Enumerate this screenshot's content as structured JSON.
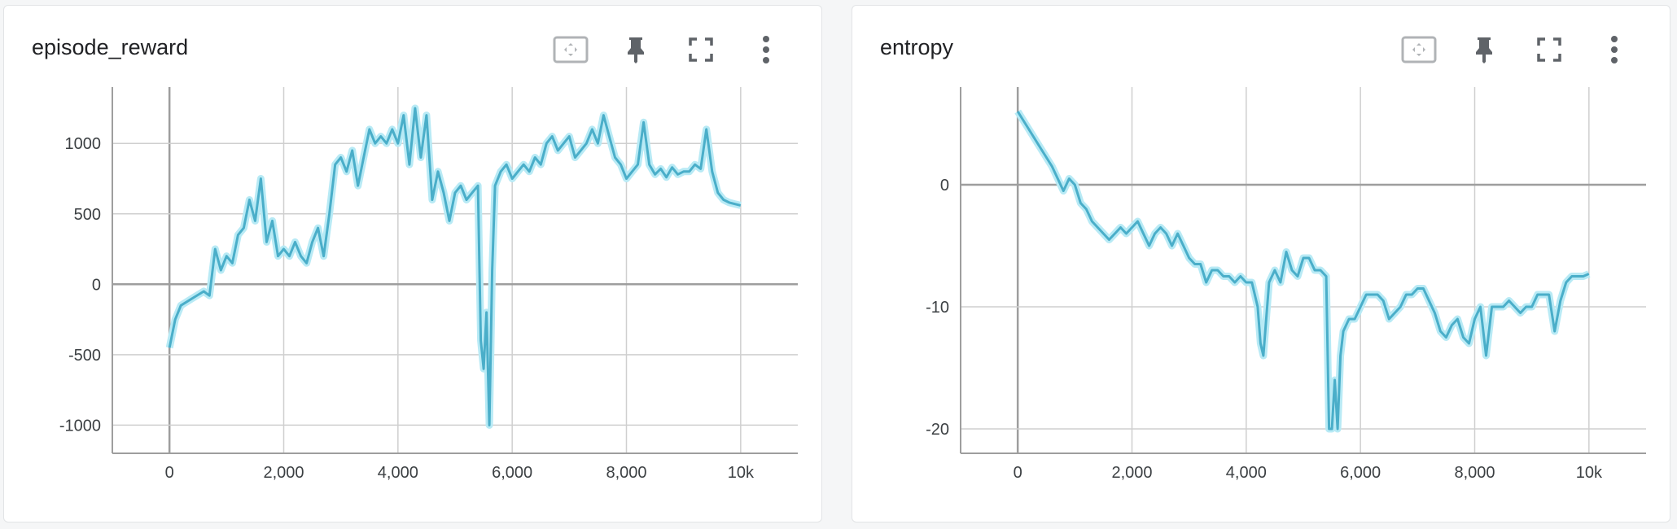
{
  "colors": {
    "line": "#4aaec9",
    "band": "#b8eaf5",
    "grid": "#cfcfcf",
    "zero_axis": "#9e9e9e",
    "icon": "#5f6368",
    "frame_icon": "#b0b3b6"
  },
  "toolbar_icons": [
    "fit-domain-icon",
    "pin-icon",
    "fullscreen-icon",
    "more-vert-icon"
  ],
  "cards": [
    {
      "title": "episode_reward",
      "chart_data": {
        "type": "line",
        "title": "episode_reward",
        "xlabel": "",
        "ylabel": "",
        "xlim": [
          -1000,
          11000
        ],
        "ylim": [
          -1200,
          1400
        ],
        "grid": true,
        "x_ticks": [
          0,
          2000,
          4000,
          6000,
          8000,
          10000
        ],
        "x_tick_labels": [
          "0",
          "2,000",
          "4,000",
          "6,000",
          "8,000",
          "10k"
        ],
        "y_ticks": [
          -1000,
          -500,
          0,
          500,
          1000
        ],
        "y_tick_labels": [
          "-1000",
          "-500",
          "0",
          "500",
          "1000"
        ],
        "series": [
          {
            "x": [
              0,
              100,
              200,
              400,
              600,
              700,
              800,
              900,
              1000,
              1100,
              1200,
              1300,
              1400,
              1500,
              1600,
              1700,
              1800,
              1900,
              2000,
              2100,
              2200,
              2300,
              2400,
              2500,
              2600,
              2700,
              2800,
              2900,
              3000,
              3100,
              3200,
              3300,
              3400,
              3500,
              3600,
              3700,
              3800,
              3900,
              4000,
              4100,
              4200,
              4300,
              4400,
              4500,
              4600,
              4700,
              4800,
              4900,
              5000,
              5100,
              5200,
              5300,
              5400,
              5450,
              5500,
              5550,
              5600,
              5650,
              5700,
              5800,
              5900,
              6000,
              6100,
              6200,
              6300,
              6400,
              6500,
              6600,
              6700,
              6800,
              6900,
              7000,
              7100,
              7200,
              7300,
              7400,
              7500,
              7600,
              7700,
              7800,
              7900,
              8000,
              8100,
              8200,
              8300,
              8400,
              8500,
              8600,
              8700,
              8800,
              8900,
              9000,
              9100,
              9200,
              9300,
              9400,
              9500,
              9600,
              9700,
              9800,
              9900,
              10000
            ],
            "y": [
              -450,
              -250,
              -150,
              -100,
              -50,
              -80,
              250,
              100,
              200,
              150,
              350,
              400,
              600,
              450,
              750,
              300,
              450,
              200,
              250,
              200,
              300,
              200,
              150,
              300,
              400,
              200,
              500,
              850,
              900,
              800,
              950,
              700,
              900,
              1100,
              1000,
              1050,
              1000,
              1100,
              1000,
              1200,
              850,
              1250,
              900,
              1200,
              600,
              800,
              650,
              450,
              650,
              700,
              600,
              650,
              700,
              -400,
              -600,
              -200,
              -1000,
              100,
              700,
              800,
              850,
              750,
              800,
              850,
              800,
              900,
              850,
              1000,
              1050,
              950,
              1000,
              1050,
              900,
              950,
              1000,
              1100,
              1000,
              1200,
              1050,
              900,
              850,
              750,
              800,
              850,
              1150,
              850,
              780,
              820,
              760,
              830,
              780,
              800,
              800,
              850,
              820,
              1100,
              800,
              650,
              600,
              580,
              570,
              560
            ]
          }
        ]
      }
    },
    {
      "title": "entropy",
      "chart_data": {
        "type": "line",
        "title": "entropy",
        "xlabel": "",
        "ylabel": "",
        "xlim": [
          -1000,
          11000
        ],
        "ylim": [
          -22,
          8
        ],
        "grid": true,
        "x_ticks": [
          0,
          2000,
          4000,
          6000,
          8000,
          10000
        ],
        "x_tick_labels": [
          "0",
          "2,000",
          "4,000",
          "6,000",
          "8,000",
          "10k"
        ],
        "y_ticks": [
          -20,
          -10,
          0
        ],
        "y_tick_labels": [
          "-20",
          "-10",
          "0"
        ],
        "series": [
          {
            "x": [
              0,
              200,
              400,
              600,
              700,
              800,
              900,
              1000,
              1100,
              1200,
              1300,
              1400,
              1500,
              1600,
              1700,
              1800,
              1900,
              2000,
              2100,
              2200,
              2300,
              2400,
              2500,
              2600,
              2700,
              2800,
              2900,
              3000,
              3100,
              3200,
              3300,
              3400,
              3500,
              3600,
              3700,
              3800,
              3900,
              4000,
              4100,
              4200,
              4250,
              4300,
              4400,
              4500,
              4600,
              4700,
              4800,
              4900,
              5000,
              5100,
              5200,
              5300,
              5400,
              5450,
              5500,
              5550,
              5600,
              5650,
              5700,
              5800,
              5900,
              6000,
              6100,
              6200,
              6300,
              6400,
              6500,
              6600,
              6700,
              6800,
              6900,
              7000,
              7100,
              7200,
              7300,
              7400,
              7500,
              7600,
              7700,
              7800,
              7900,
              8000,
              8100,
              8200,
              8300,
              8400,
              8500,
              8600,
              8700,
              8800,
              8900,
              9000,
              9100,
              9200,
              9300,
              9400,
              9500,
              9600,
              9700,
              9800,
              9900,
              10000
            ],
            "y": [
              6,
              4.5,
              3,
              1.5,
              0.5,
              -0.5,
              0.5,
              0,
              -1.5,
              -2,
              -3,
              -3.5,
              -4,
              -4.5,
              -4,
              -3.5,
              -4,
              -3.5,
              -3,
              -4,
              -5,
              -4,
              -3.5,
              -4,
              -5,
              -4,
              -5,
              -6,
              -6.5,
              -6.5,
              -8,
              -7,
              -7,
              -7.5,
              -7.5,
              -8,
              -7.5,
              -8,
              -8,
              -10,
              -13,
              -14,
              -8,
              -7,
              -8,
              -5.5,
              -7,
              -7.5,
              -6,
              -6,
              -7,
              -7,
              -7.5,
              -20,
              -20,
              -16,
              -20,
              -14,
              -12,
              -11,
              -11,
              -10,
              -9,
              -9,
              -9,
              -9.5,
              -11,
              -10.5,
              -10,
              -9,
              -9,
              -8.5,
              -8.5,
              -9.5,
              -10.5,
              -12,
              -12.5,
              -11.5,
              -11,
              -12.5,
              -13,
              -11,
              -10,
              -14,
              -10,
              -10,
              -10,
              -9.5,
              -10,
              -10.5,
              -10,
              -10,
              -9,
              -9,
              -9,
              -12,
              -9.5,
              -8,
              -7.5,
              -7.5,
              -7.5,
              -7.3
            ]
          }
        ]
      }
    }
  ]
}
